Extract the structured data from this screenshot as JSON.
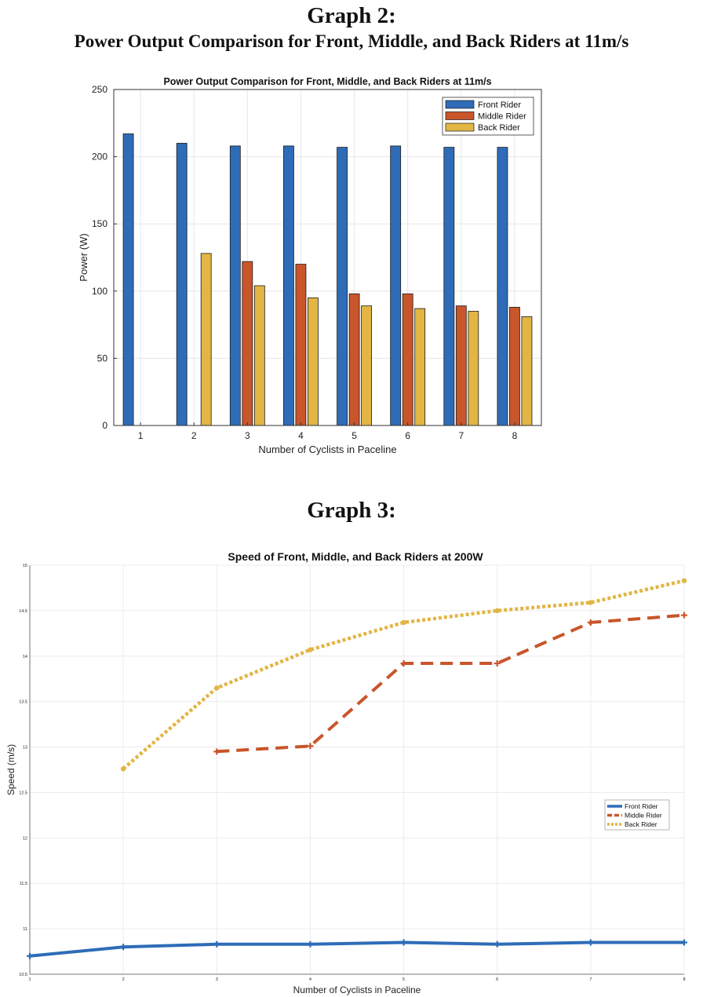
{
  "headings": {
    "graph2_title": "Graph 2:",
    "graph2_subtitle": "Power Output Comparison for Front, Middle, and Back Riders at 11m/s",
    "graph3_title": "Graph 3:"
  },
  "colors": {
    "front": "#2e6cb8",
    "middle": "#c9552b",
    "back": "#e2b544"
  },
  "chart_data": [
    {
      "type": "bar",
      "title": "Power Output Comparison for Front, Middle, and Back Riders at 11m/s",
      "xlabel": "Number of Cyclists in Paceline",
      "ylabel": "Power (W)",
      "ylim": [
        0,
        250
      ],
      "yticks": [
        0,
        50,
        100,
        150,
        200,
        250
      ],
      "categories": [
        "1",
        "2",
        "3",
        "4",
        "5",
        "6",
        "7",
        "8"
      ],
      "grid": true,
      "legend": "top-right",
      "series": [
        {
          "name": "Front Rider",
          "values": [
            217,
            210,
            208,
            208,
            207,
            208,
            207,
            207
          ]
        },
        {
          "name": "Middle Rider",
          "values": [
            null,
            null,
            122,
            120,
            98,
            98,
            89,
            88
          ]
        },
        {
          "name": "Back Rider",
          "values": [
            null,
            128,
            104,
            95,
            89,
            87,
            85,
            81
          ]
        }
      ]
    },
    {
      "type": "line",
      "title": "Speed of Front, Middle, and Back Riders at 200W",
      "xlabel": "Number of Cyclists in Paceline",
      "ylabel": "Speed (m/s)",
      "xlim": [
        1,
        8
      ],
      "ylim": [
        10.5,
        15
      ],
      "xticks": [
        1,
        2,
        3,
        4,
        5,
        6,
        7,
        8
      ],
      "yticks": [
        10.5,
        11,
        11.5,
        12,
        12.5,
        13,
        13.5,
        14,
        14.5,
        15
      ],
      "grid": true,
      "legend": "right",
      "x": [
        1,
        2,
        3,
        4,
        5,
        6,
        7,
        8
      ],
      "series": [
        {
          "name": "Front Rider",
          "values": [
            10.7,
            10.8,
            10.83,
            10.83,
            10.85,
            10.83,
            10.85,
            10.85
          ]
        },
        {
          "name": "Middle Rider",
          "values": [
            null,
            null,
            12.95,
            13.01,
            13.92,
            13.92,
            14.37,
            14.45
          ]
        },
        {
          "name": "Back Rider",
          "values": [
            null,
            12.76,
            13.65,
            14.07,
            14.37,
            14.5,
            14.59,
            14.83
          ]
        }
      ]
    }
  ]
}
